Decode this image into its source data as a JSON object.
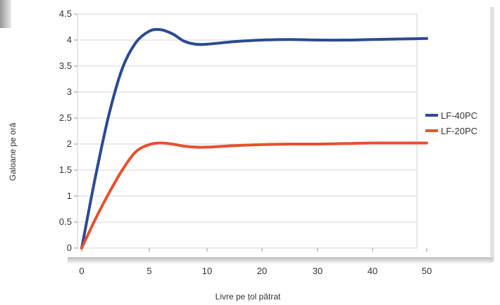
{
  "chart_data": {
    "type": "line",
    "title": "",
    "xlabel": "Livre pe țol pătrat",
    "ylabel": "Galoane pe oră",
    "x_ticks": [
      "0",
      "5",
      "10",
      "20",
      "30",
      "40",
      "50"
    ],
    "y_ticks": [
      "0",
      "0.5",
      "1",
      "1.5",
      "2",
      "2.5",
      "3",
      "3.5",
      "4",
      "4.5"
    ],
    "ylim": [
      0,
      4.5
    ],
    "grid": "horizontal",
    "legend_position": "right",
    "series": [
      {
        "name": "LF-40PC",
        "color": "#2b4a94",
        "points": [
          [
            0,
            0
          ],
          [
            1,
            1.35
          ],
          [
            2,
            2.55
          ],
          [
            3,
            3.45
          ],
          [
            4,
            3.95
          ],
          [
            5,
            4.17
          ],
          [
            6,
            4.2
          ],
          [
            7,
            4.12
          ],
          [
            8,
            3.98
          ],
          [
            9,
            3.92
          ],
          [
            10,
            3.92
          ],
          [
            15,
            3.97
          ],
          [
            20,
            4.0
          ],
          [
            25,
            4.01
          ],
          [
            30,
            4.0
          ],
          [
            35,
            4.0
          ],
          [
            40,
            4.01
          ],
          [
            45,
            4.02
          ],
          [
            50,
            4.03
          ]
        ]
      },
      {
        "name": "LF-20PC",
        "color": "#e8502e",
        "points": [
          [
            0,
            0
          ],
          [
            1,
            0.55
          ],
          [
            2,
            1.05
          ],
          [
            3,
            1.5
          ],
          [
            4,
            1.85
          ],
          [
            5,
            1.99
          ],
          [
            6,
            2.02
          ],
          [
            7,
            2.0
          ],
          [
            8,
            1.96
          ],
          [
            9,
            1.94
          ],
          [
            10,
            1.94
          ],
          [
            15,
            1.97
          ],
          [
            20,
            1.99
          ],
          [
            25,
            2.0
          ],
          [
            30,
            2.0
          ],
          [
            35,
            2.01
          ],
          [
            40,
            2.02
          ],
          [
            45,
            2.02
          ],
          [
            50,
            2.02
          ]
        ]
      }
    ]
  }
}
